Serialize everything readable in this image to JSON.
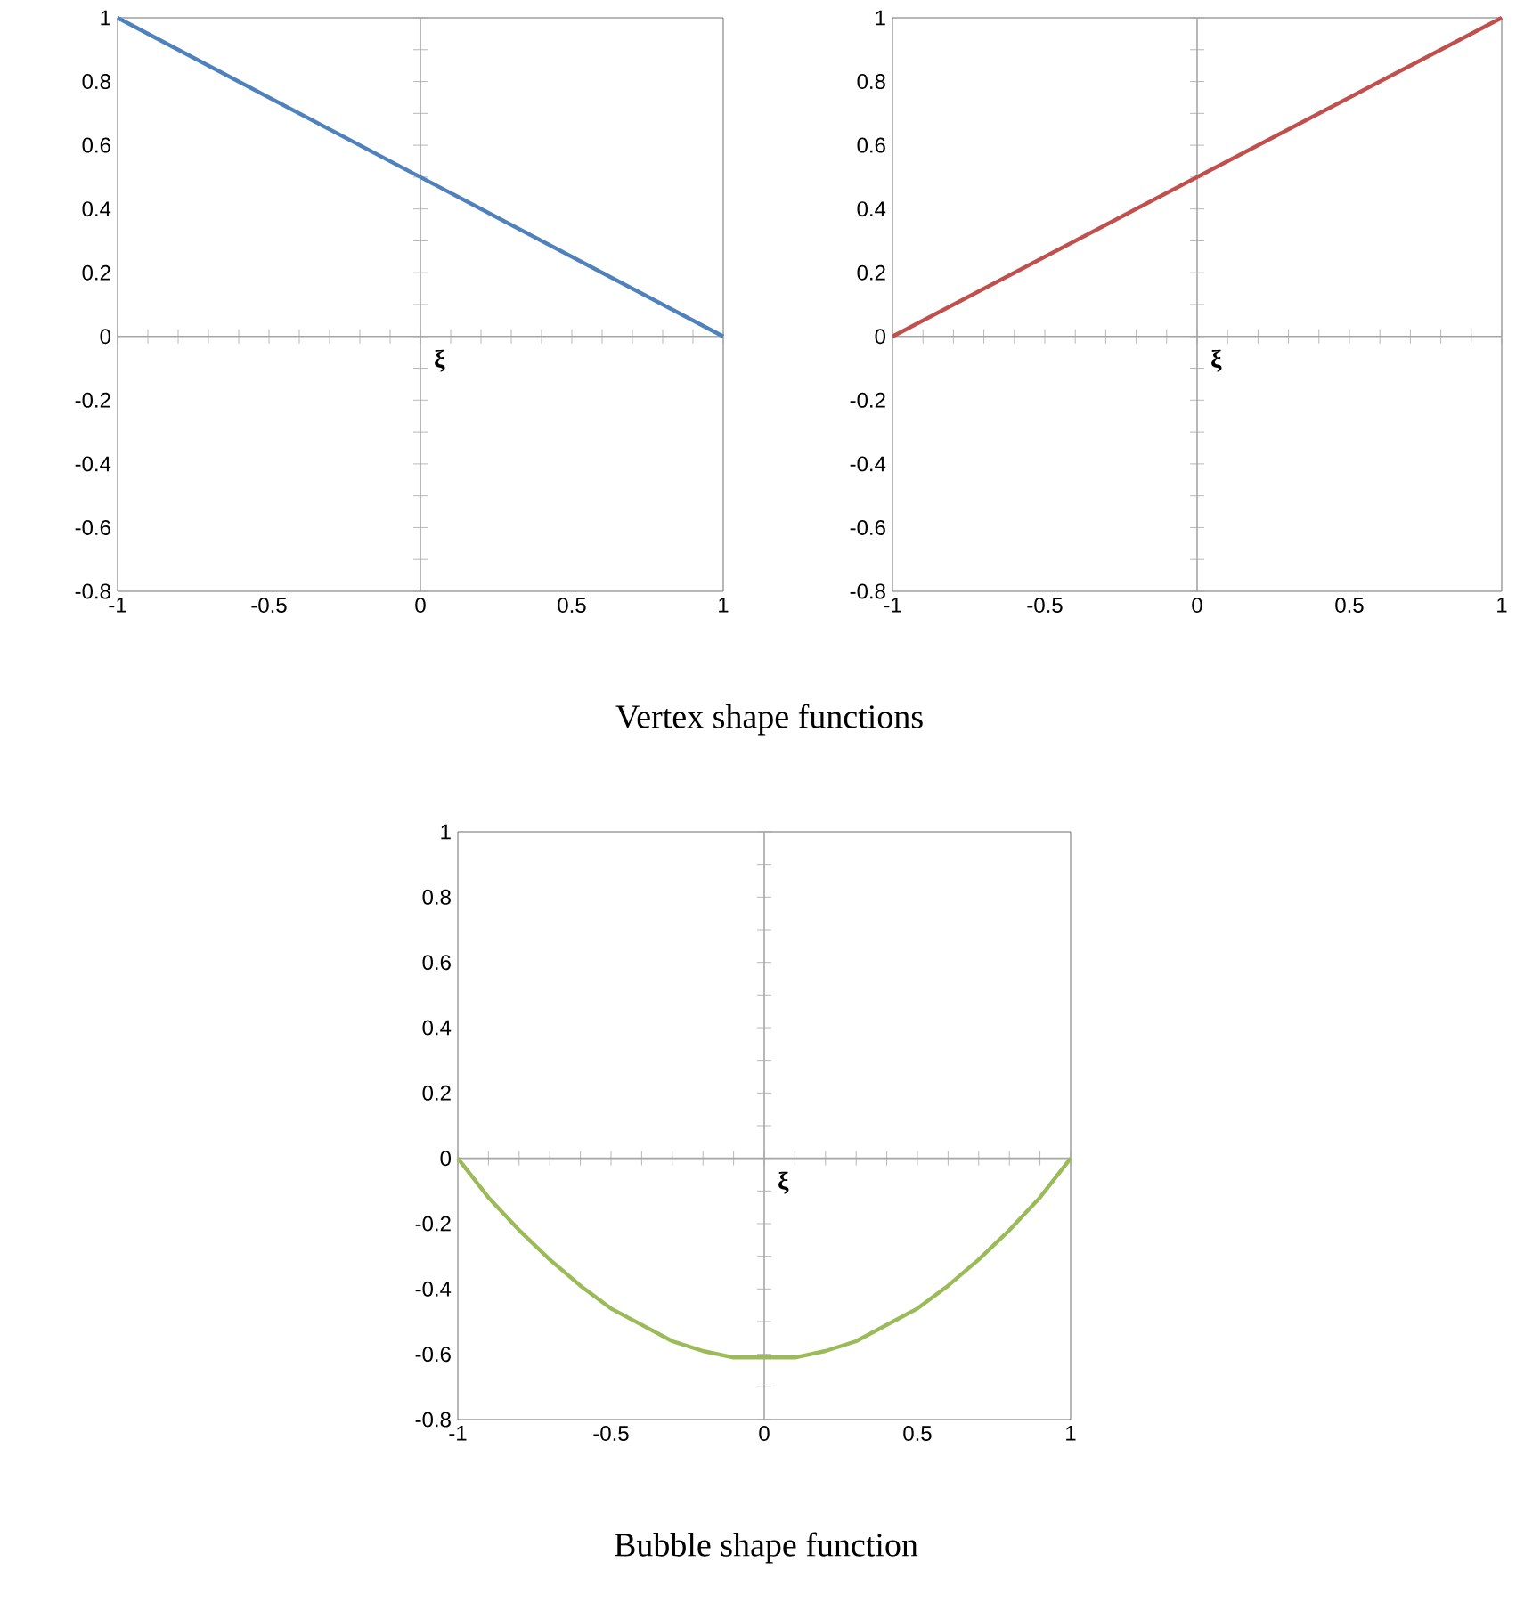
{
  "chart_data": [
    {
      "type": "line",
      "title": "Vertex shape functions",
      "xlabel": "ξ",
      "x": [
        -1,
        1
      ],
      "values": [
        1,
        0
      ],
      "color": "#4f81bd",
      "xlim": [
        -1,
        1
      ],
      "ylim": [
        -0.8,
        1
      ],
      "xticks": [
        -1,
        -0.5,
        0,
        0.5,
        1
      ],
      "yticks": [
        -0.8,
        -0.6,
        -0.4,
        -0.2,
        0,
        0.2,
        0.4,
        0.6,
        0.8,
        1
      ]
    },
    {
      "type": "line",
      "xlabel": "ξ",
      "x": [
        -1,
        1
      ],
      "values": [
        0,
        1
      ],
      "color": "#c0504d",
      "xlim": [
        -1,
        1
      ],
      "ylim": [
        -0.8,
        1
      ],
      "xticks": [
        -1,
        -0.5,
        0,
        0.5,
        1
      ],
      "yticks": [
        -0.8,
        -0.6,
        -0.4,
        -0.2,
        0,
        0.2,
        0.4,
        0.6,
        0.8,
        1
      ]
    },
    {
      "type": "line",
      "title": "Bubble shape function",
      "xlabel": "ξ",
      "x": [
        -1,
        -0.9,
        -0.8,
        -0.7,
        -0.6,
        -0.5,
        -0.4,
        -0.3,
        -0.2,
        -0.1,
        0,
        0.1,
        0.2,
        0.3,
        0.4,
        0.5,
        0.6,
        0.7,
        0.8,
        0.9,
        1
      ],
      "values": [
        0,
        -0.12,
        -0.22,
        -0.31,
        -0.39,
        -0.46,
        -0.51,
        -0.56,
        -0.59,
        -0.61,
        -0.61,
        -0.61,
        -0.59,
        -0.56,
        -0.51,
        -0.46,
        -0.39,
        -0.31,
        -0.22,
        -0.12,
        0
      ],
      "color": "#9bbb59",
      "xlim": [
        -1,
        1
      ],
      "ylim": [
        -0.8,
        1
      ],
      "xticks": [
        -1,
        -0.5,
        0,
        0.5,
        1
      ],
      "yticks": [
        -0.8,
        -0.6,
        -0.4,
        -0.2,
        0,
        0.2,
        0.4,
        0.6,
        0.8,
        1
      ]
    }
  ]
}
